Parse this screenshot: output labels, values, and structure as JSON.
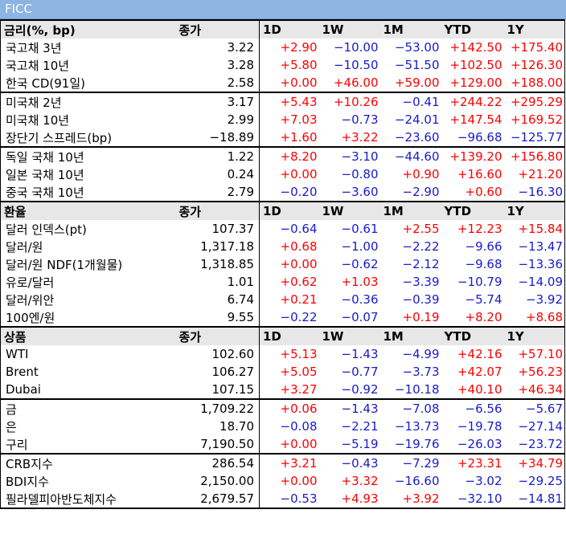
{
  "title": "FICC",
  "columns": [
    "1D",
    "1W",
    "1M",
    "YTD",
    "1Y"
  ],
  "colors": {
    "positive": "#ff0000",
    "negative": "#1a1acc",
    "header_bg": "#e7e7e7",
    "title_bg": "#8db4e2"
  },
  "sections": [
    {
      "header": "금리(%, bp)",
      "close_label": "종가",
      "groups": [
        [
          {
            "name": "국고채 3년",
            "close": "3.22",
            "d1": "+2.90",
            "w1": "-10.00",
            "m1": "-53.00",
            "ytd": "+142.50",
            "y1": "+175.40"
          },
          {
            "name": "국고채 10년",
            "close": "3.28",
            "d1": "+5.80",
            "w1": "-10.50",
            "m1": "-51.50",
            "ytd": "+102.50",
            "y1": "+126.30"
          },
          {
            "name": "한국 CD(91일)",
            "close": "2.58",
            "d1": "+0.00",
            "w1": "+46.00",
            "m1": "+59.00",
            "ytd": "+129.00",
            "y1": "+188.00"
          }
        ],
        [
          {
            "name": "미국채 2년",
            "close": "3.17",
            "d1": "+5.43",
            "w1": "+10.26",
            "m1": "-0.41",
            "ytd": "+244.22",
            "y1": "+295.29"
          },
          {
            "name": "미국채 10년",
            "close": "2.99",
            "d1": "+7.03",
            "w1": "-0.73",
            "m1": "-24.01",
            "ytd": "+147.54",
            "y1": "+169.52"
          },
          {
            "name": "장단기 스프레드(bp)",
            "close": "-18.89",
            "d1": "+1.60",
            "w1": "+3.22",
            "m1": "-23.60",
            "ytd": "-96.68",
            "y1": "-125.77"
          }
        ],
        [
          {
            "name": "독일 국채 10년",
            "close": "1.22",
            "d1": "+8.20",
            "w1": "-3.10",
            "m1": "-44.60",
            "ytd": "+139.20",
            "y1": "+156.80"
          },
          {
            "name": "일본 국채 10년",
            "close": "0.24",
            "d1": "+0.00",
            "w1": "-0.80",
            "m1": "+0.90",
            "ytd": "+16.60",
            "y1": "+21.20"
          },
          {
            "name": "중국 국채 10년",
            "close": "2.79",
            "d1": "-0.20",
            "w1": "-3.60",
            "m1": "-2.90",
            "ytd": "+0.60",
            "y1": "-16.30"
          }
        ]
      ]
    },
    {
      "header": "환율",
      "close_label": "종가",
      "groups": [
        [
          {
            "name": "달러 인덱스(pt)",
            "close": "107.37",
            "d1": "-0.64",
            "w1": "-0.61",
            "m1": "+2.55",
            "ytd": "+12.23",
            "y1": "+15.84"
          },
          {
            "name": "달러/원",
            "close": "1,317.18",
            "d1": "+0.68",
            "w1": "-1.00",
            "m1": "-2.22",
            "ytd": "-9.66",
            "y1": "-13.47"
          },
          {
            "name": "달러/원 NDF(1개월물)",
            "close": "1,318.85",
            "d1": "+0.00",
            "w1": "-0.62",
            "m1": "-2.12",
            "ytd": "-9.68",
            "y1": "-13.36"
          },
          {
            "name": "유로/달러",
            "close": "1.01",
            "d1": "+0.62",
            "w1": "+1.03",
            "m1": "-3.39",
            "ytd": "-10.79",
            "y1": "-14.09"
          },
          {
            "name": "달러/위안",
            "close": "6.74",
            "d1": "+0.21",
            "w1": "-0.36",
            "m1": "-0.39",
            "ytd": "-5.74",
            "y1": "-3.92"
          },
          {
            "name": "100엔/원",
            "close": "9.55",
            "d1": "-0.22",
            "w1": "-0.07",
            "m1": "+0.19",
            "ytd": "+8.20",
            "y1": "+8.68"
          }
        ]
      ]
    },
    {
      "header": "상품",
      "close_label": "종가",
      "groups": [
        [
          {
            "name": "WTI",
            "close": "102.60",
            "d1": "+5.13",
            "w1": "-1.43",
            "m1": "-4.99",
            "ytd": "+42.16",
            "y1": "+57.10"
          },
          {
            "name": "Brent",
            "close": "106.27",
            "d1": "+5.05",
            "w1": "-0.77",
            "m1": "-3.73",
            "ytd": "+42.07",
            "y1": "+56.23"
          },
          {
            "name": "Dubai",
            "close": "107.15",
            "d1": "+3.27",
            "w1": "-0.92",
            "m1": "-10.18",
            "ytd": "+40.10",
            "y1": "+46.34"
          }
        ],
        [
          {
            "name": "금",
            "close": "1,709.22",
            "d1": "+0.06",
            "w1": "-1.43",
            "m1": "-7.08",
            "ytd": "-6.56",
            "y1": "-5.67"
          },
          {
            "name": "은",
            "close": "18.70",
            "d1": "-0.08",
            "w1": "-2.21",
            "m1": "-13.73",
            "ytd": "-19.78",
            "y1": "-27.14"
          },
          {
            "name": "구리",
            "close": "7,190.50",
            "d1": "+0.00",
            "w1": "-5.19",
            "m1": "-19.76",
            "ytd": "-26.03",
            "y1": "-23.72"
          }
        ],
        [
          {
            "name": "CRB지수",
            "close": "286.54",
            "d1": "+3.21",
            "w1": "-0.43",
            "m1": "-7.29",
            "ytd": "+23.31",
            "y1": "+34.79"
          },
          {
            "name": "BDI지수",
            "close": "2,150.00",
            "d1": "+0.00",
            "w1": "+3.32",
            "m1": "-16.60",
            "ytd": "-3.02",
            "y1": "-29.25"
          },
          {
            "name": "필라델피아반도체지수",
            "close": "2,679.57",
            "d1": "-0.53",
            "w1": "+4.93",
            "m1": "+3.92",
            "ytd": "-32.10",
            "y1": "-14.81"
          }
        ]
      ]
    }
  ]
}
